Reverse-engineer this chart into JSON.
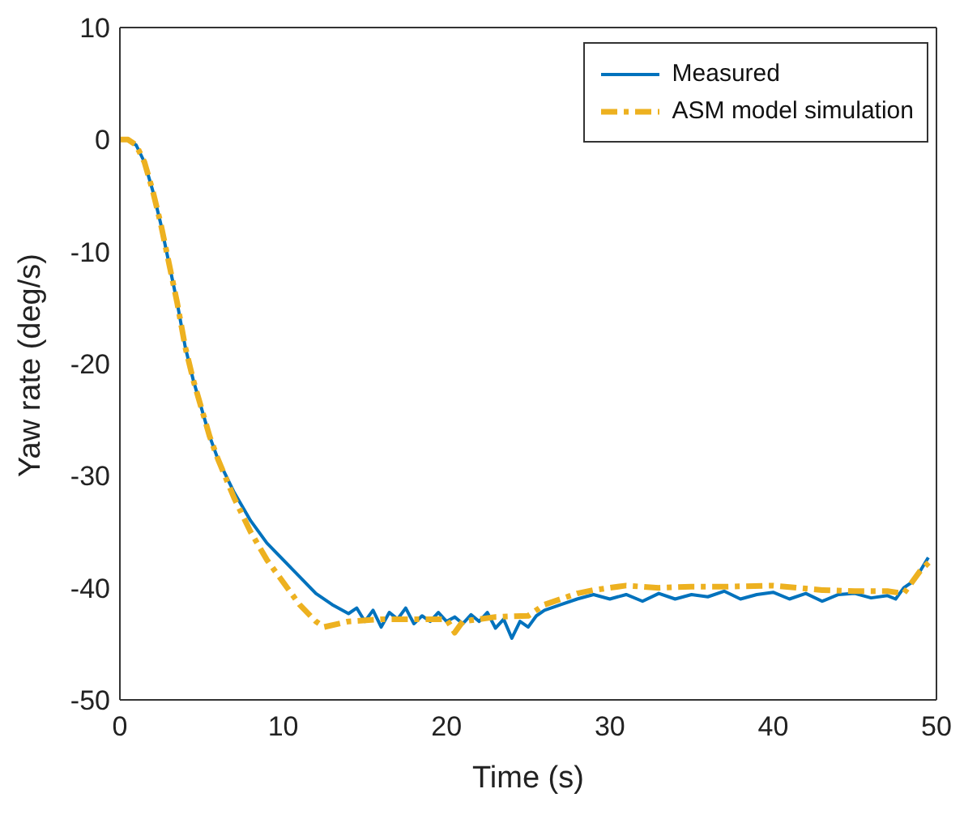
{
  "chart_data": {
    "type": "line",
    "xlabel": "Time (s)",
    "ylabel": "Yaw rate (deg/s)",
    "xlim": [
      0,
      50
    ],
    "xticks": [
      0,
      10,
      20,
      30,
      40,
      50
    ],
    "ylim": [
      -50,
      10
    ],
    "yticks": [
      -50,
      -40,
      -30,
      -20,
      -10,
      0,
      10
    ],
    "grid": false,
    "legend": "top right",
    "marker": "none",
    "series": [
      {
        "name": "Measured",
        "color": "#0072bd",
        "line_style": "solid",
        "x": [
          0,
          0.5,
          1,
          1.5,
          2,
          2.5,
          3,
          3.5,
          4,
          4.5,
          5,
          5.5,
          6,
          7,
          8,
          9,
          10,
          11,
          12,
          13,
          14,
          14.5,
          15,
          15.5,
          16,
          16.5,
          17,
          17.5,
          18,
          18.5,
          19,
          19.5,
          20,
          20.5,
          21,
          21.5,
          22,
          22.5,
          23,
          23.5,
          24,
          24.5,
          25,
          25.5,
          26,
          27,
          28,
          29,
          30,
          31,
          32,
          33,
          34,
          35,
          36,
          37,
          38,
          39,
          40,
          41,
          42,
          43,
          44,
          45,
          46,
          47,
          47.5,
          48,
          48.5,
          49,
          49.5
        ],
        "values": [
          0,
          0,
          -0.5,
          -2,
          -4.5,
          -7.5,
          -11,
          -14.5,
          -18.5,
          -21.5,
          -24,
          -26.5,
          -28.5,
          -31.5,
          -34,
          -36,
          -37.5,
          -39,
          -40.5,
          -41.5,
          -42.3,
          -41.8,
          -43,
          -42,
          -43.5,
          -42.2,
          -42.8,
          -41.8,
          -43.2,
          -42.5,
          -43,
          -42.2,
          -43,
          -42.6,
          -43.2,
          -42.4,
          -43,
          -42.2,
          -43.6,
          -42.8,
          -44.5,
          -43,
          -43.5,
          -42.5,
          -42,
          -41.5,
          -41,
          -40.6,
          -41,
          -40.6,
          -41.2,
          -40.5,
          -41,
          -40.6,
          -40.8,
          -40.3,
          -41,
          -40.6,
          -40.4,
          -41,
          -40.5,
          -41.2,
          -40.6,
          -40.5,
          -40.9,
          -40.7,
          -41,
          -40,
          -39.5,
          -38.5,
          -37.3
        ]
      },
      {
        "name": "ASM model simulation",
        "color": "#edb120",
        "line_style": "dashed",
        "x": [
          0,
          0.5,
          1,
          1.5,
          2,
          2.5,
          3,
          3.5,
          4,
          4.5,
          5,
          5.5,
          6,
          7,
          8,
          9,
          10,
          11,
          12,
          12.5,
          14,
          16,
          18,
          20,
          20.5,
          21,
          23,
          25,
          26,
          27,
          28,
          29,
          30,
          31,
          33,
          35,
          37,
          40,
          43,
          45,
          47,
          48,
          49,
          49.7
        ],
        "values": [
          0,
          0,
          -0.5,
          -2,
          -4.5,
          -7.5,
          -11,
          -14.5,
          -18.5,
          -21.5,
          -24,
          -26.5,
          -28.5,
          -32,
          -35,
          -37.5,
          -39.5,
          -41.5,
          -43,
          -43.5,
          -43,
          -42.8,
          -42.8,
          -42.8,
          -44,
          -43,
          -42.6,
          -42.5,
          -41.5,
          -41,
          -40.5,
          -40.2,
          -40,
          -39.8,
          -40,
          -39.9,
          -39.9,
          -39.8,
          -40.2,
          -40.3,
          -40.3,
          -40.5,
          -38.5,
          -37.5
        ]
      }
    ]
  }
}
